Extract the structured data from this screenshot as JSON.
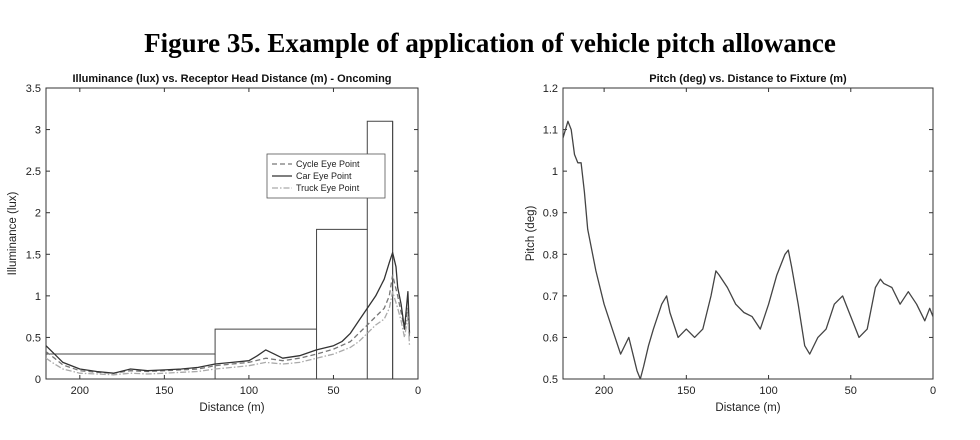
{
  "figure_title": "Figure 35. Example of application of vehicle pitch allowance",
  "chart_data": [
    {
      "type": "line",
      "title": "Illuminance (lux) vs. Receptor Head Distance (m) - Oncoming",
      "xlabel": "Distance (m)",
      "ylabel": "Illuminance (lux)",
      "xlim": [
        220,
        0
      ],
      "ylim": [
        0,
        3.5
      ],
      "xticks": [
        200,
        150,
        100,
        50,
        0
      ],
      "xtick_labels": [
        "200",
        "150",
        "100",
        "50",
        "0"
      ],
      "yticks": [
        0,
        0.5,
        1,
        1.5,
        2,
        2.5,
        3,
        3.5
      ],
      "ytick_labels": [
        "0",
        "0.5",
        "1",
        "1.5",
        "2",
        "2.5",
        "3",
        "3.5"
      ],
      "legend_position": "upper-right",
      "series": [
        {
          "name": "Cycle Eye Point",
          "style": "dashed",
          "color": "#777777",
          "x": [
            220,
            215,
            210,
            200,
            190,
            180,
            170,
            160,
            150,
            140,
            130,
            120,
            110,
            100,
            90,
            80,
            70,
            60,
            50,
            40,
            35,
            30,
            25,
            20,
            17,
            15,
            12,
            10,
            8,
            6,
            5
          ],
          "y": [
            0.33,
            0.25,
            0.17,
            0.1,
            0.08,
            0.07,
            0.1,
            0.09,
            0.1,
            0.11,
            0.12,
            0.16,
            0.18,
            0.2,
            0.25,
            0.22,
            0.25,
            0.3,
            0.36,
            0.45,
            0.55,
            0.65,
            0.75,
            0.85,
            1.0,
            1.25,
            1.0,
            0.8,
            0.6,
            0.85,
            0.5
          ]
        },
        {
          "name": "Car Eye Point",
          "style": "solid",
          "color": "#333333",
          "x": [
            220,
            215,
            210,
            200,
            190,
            180,
            170,
            160,
            150,
            140,
            130,
            120,
            110,
            100,
            95,
            90,
            85,
            80,
            70,
            60,
            50,
            45,
            40,
            35,
            30,
            25,
            20,
            17,
            15,
            13,
            12,
            10,
            8,
            6,
            5
          ],
          "y": [
            0.4,
            0.3,
            0.2,
            0.12,
            0.09,
            0.07,
            0.12,
            0.1,
            0.11,
            0.12,
            0.14,
            0.18,
            0.2,
            0.22,
            0.28,
            0.35,
            0.3,
            0.25,
            0.28,
            0.35,
            0.4,
            0.45,
            0.55,
            0.7,
            0.85,
            1.0,
            1.2,
            1.4,
            1.52,
            1.35,
            1.1,
            0.9,
            0.6,
            1.05,
            0.55
          ]
        },
        {
          "name": "Truck Eye Point",
          "style": "dash-dot",
          "color": "#aaaaaa",
          "x": [
            220,
            215,
            210,
            200,
            190,
            180,
            170,
            160,
            150,
            140,
            130,
            120,
            110,
            100,
            90,
            80,
            70,
            60,
            50,
            40,
            35,
            30,
            25,
            20,
            17,
            15,
            12,
            10,
            8,
            6,
            5
          ],
          "y": [
            0.25,
            0.18,
            0.12,
            0.07,
            0.06,
            0.05,
            0.07,
            0.06,
            0.07,
            0.08,
            0.09,
            0.12,
            0.14,
            0.16,
            0.2,
            0.18,
            0.2,
            0.25,
            0.3,
            0.38,
            0.45,
            0.55,
            0.65,
            0.72,
            0.85,
            1.05,
            0.85,
            0.7,
            0.5,
            0.75,
            0.4
          ]
        }
      ],
      "step_limit": {
        "x": [
          220,
          120,
          120,
          60,
          60,
          30,
          30,
          15,
          15
        ],
        "y": [
          0.3,
          0.3,
          0.6,
          0.6,
          1.8,
          1.8,
          3.1,
          3.1,
          0
        ]
      },
      "legend": [
        "Cycle Eye Point",
        "Car Eye Point",
        "Truck Eye Point"
      ]
    },
    {
      "type": "line",
      "title": "Pitch (deg) vs. Distance to Fixture (m)",
      "xlabel": "Distance (m)",
      "ylabel": "Pitch (deg)",
      "xlim": [
        225,
        0
      ],
      "ylim": [
        0.5,
        1.2
      ],
      "xticks": [
        200,
        150,
        100,
        50,
        0
      ],
      "xtick_labels": [
        "200",
        "150",
        "100",
        "50",
        "0"
      ],
      "yticks": [
        0.5,
        0.6,
        0.7,
        0.8,
        0.9,
        1.0,
        1.1,
        1.2
      ],
      "ytick_labels": [
        "0.5",
        "0.6",
        "0.7",
        "0.8",
        "0.9",
        "1",
        "1.1",
        "1.2"
      ],
      "series": [
        {
          "style": "solid",
          "color": "#444444",
          "x": [
            225,
            222,
            220,
            218,
            216,
            214,
            212,
            210,
            205,
            200,
            195,
            190,
            185,
            180,
            178,
            176,
            173,
            170,
            165,
            162,
            160,
            155,
            150,
            145,
            140,
            135,
            132,
            130,
            125,
            120,
            115,
            110,
            105,
            100,
            95,
            90,
            88,
            86,
            82,
            78,
            75,
            70,
            65,
            60,
            55,
            50,
            45,
            40,
            35,
            32,
            30,
            25,
            20,
            15,
            10,
            5,
            2,
            0
          ],
          "y": [
            1.08,
            1.12,
            1.1,
            1.04,
            1.02,
            1.02,
            0.95,
            0.86,
            0.76,
            0.68,
            0.62,
            0.56,
            0.6,
            0.52,
            0.5,
            0.53,
            0.58,
            0.62,
            0.68,
            0.7,
            0.66,
            0.6,
            0.62,
            0.6,
            0.62,
            0.7,
            0.76,
            0.75,
            0.72,
            0.68,
            0.66,
            0.65,
            0.62,
            0.68,
            0.75,
            0.8,
            0.81,
            0.77,
            0.68,
            0.58,
            0.56,
            0.6,
            0.62,
            0.68,
            0.7,
            0.65,
            0.6,
            0.62,
            0.72,
            0.74,
            0.73,
            0.72,
            0.68,
            0.71,
            0.68,
            0.64,
            0.67,
            0.65
          ]
        }
      ]
    }
  ]
}
